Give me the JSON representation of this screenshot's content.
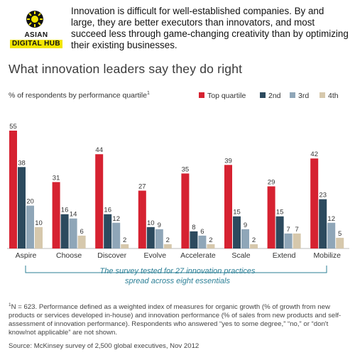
{
  "logo": {
    "line1": "ASIAN",
    "line2": "DIGITAL HUB"
  },
  "intro_text": "Innovation is difficult for well-established companies. By and large, they are better executors than innovators, and most succeed less through game-changing creativity than by optimizing their existing businesses.",
  "colors": {
    "top": "#d62231",
    "second": "#2c4a5e",
    "third": "#8fa6b8",
    "fourth": "#d6c8ac",
    "note": "#2b7f96"
  },
  "chart_data": {
    "type": "bar",
    "title": "What innovation leaders say they do right",
    "ylabel": "% of respondents by performance quartile",
    "ylabel_sup": "1",
    "categories": [
      "Aspire",
      "Choose",
      "Discover",
      "Evolve",
      "Accelerate",
      "Scale",
      "Extend",
      "Mobilize"
    ],
    "series": [
      {
        "name": "Top quartile",
        "values": [
          55,
          31,
          44,
          27,
          35,
          39,
          29,
          42
        ]
      },
      {
        "name": "2nd",
        "values": [
          38,
          16,
          16,
          10,
          8,
          15,
          15,
          23
        ]
      },
      {
        "name": "3rd",
        "values": [
          20,
          14,
          12,
          9,
          6,
          9,
          7,
          12
        ]
      },
      {
        "name": "4th",
        "values": [
          10,
          6,
          2,
          2,
          2,
          2,
          7,
          5
        ]
      }
    ],
    "ylim": [
      0,
      55
    ],
    "legend_position": "top-right",
    "annotation": "The survey tested for 27 innovation practices spread across eight essentials"
  },
  "footnote": {
    "marker": "1",
    "text": "N = 623. Performance defined as a weighted index of measures for organic growth (% of growth from new products or services developed in-house) and innovation performance (% of sales from new products and self-assessment of innovation performance). Respondents who answered “yes to some degree,” “no,” or “don't know/not applicable” are not shown."
  },
  "source": "Source: McKinsey survey of 2,500 global executives, Nov 2012"
}
